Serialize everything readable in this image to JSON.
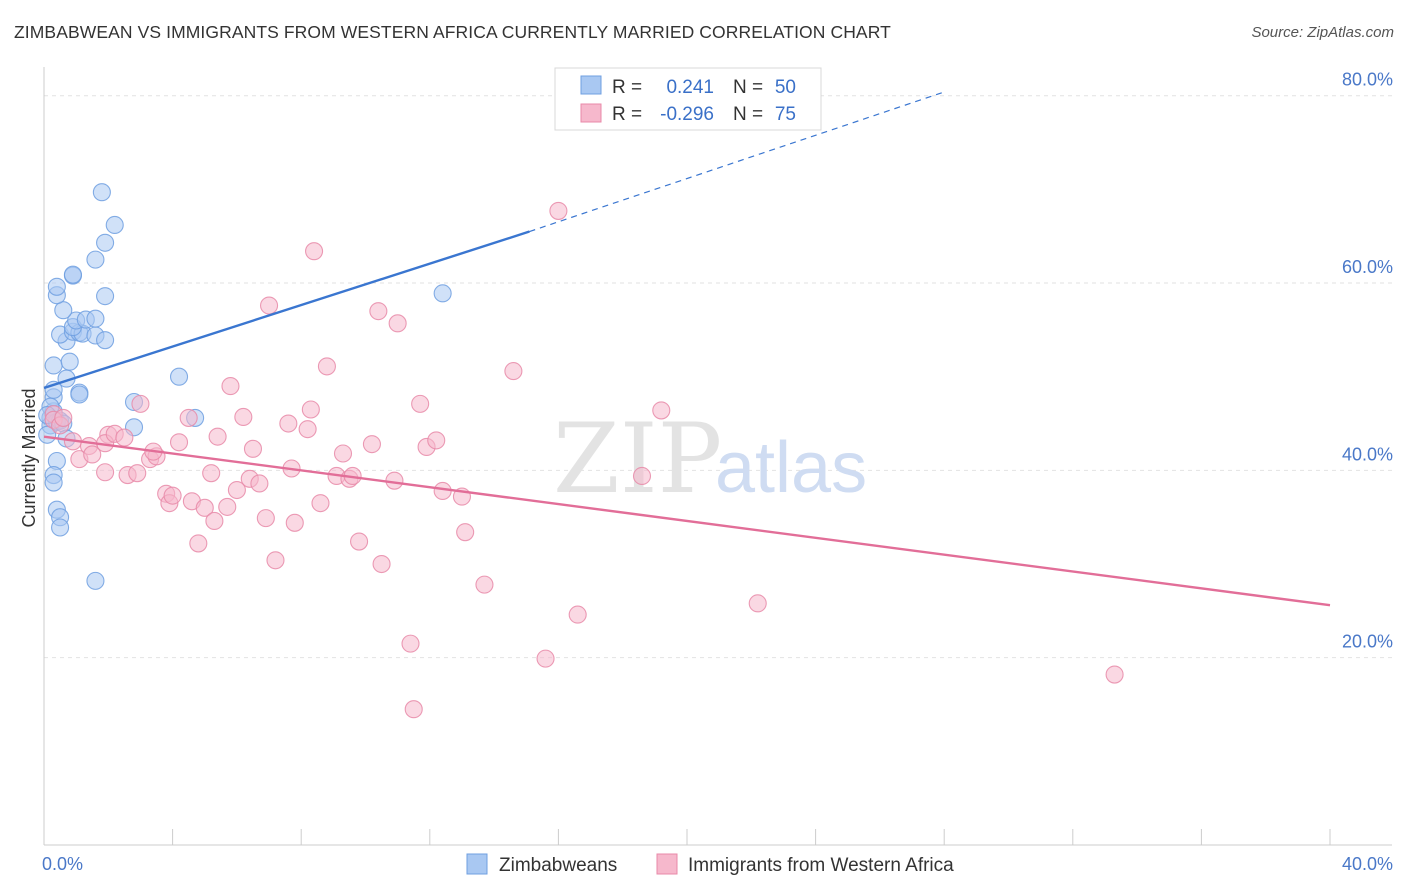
{
  "title": "ZIMBABWEAN VS IMMIGRANTS FROM WESTERN AFRICA CURRENTLY MARRIED CORRELATION CHART",
  "source": "Source: ZipAtlas.com",
  "watermark": {
    "zip": "ZIP",
    "atlas": "atlas"
  },
  "stats": [
    {
      "r_label": "R =",
      "r_value": "0.241",
      "n_label": "N =",
      "n_value": "50"
    },
    {
      "r_label": "R =",
      "r_value": "-0.296",
      "n_label": "N =",
      "n_value": "75"
    }
  ],
  "legend": [
    {
      "label": "Zimbabweans",
      "color": "#a9c8f2"
    },
    {
      "label": "Immigrants from Western Africa",
      "color": "#f6b8cc"
    }
  ],
  "chart_data": {
    "type": "scatter",
    "title": "ZIMBABWEAN VS IMMIGRANTS FROM WESTERN AFRICA CURRENTLY MARRIED CORRELATION CHART",
    "xlabel": "",
    "ylabel": "Currently Married",
    "xlim": [
      0,
      40
    ],
    "ylim": [
      0,
      82
    ],
    "x_tick_labels": [
      "0.0%",
      "40.0%"
    ],
    "y_ticks": [
      20,
      40,
      60,
      80
    ],
    "y_tick_labels": [
      "20.0%",
      "40.0%",
      "60.0%",
      "80.0%"
    ],
    "grid": true,
    "series": [
      {
        "name": "Zimbabweans",
        "color": "#6f9fe0",
        "fill": "#a9c8f2",
        "trend": {
          "x1": 0,
          "y1": 48.8,
          "x2": 15.1,
          "y2": 65.5,
          "dash_to_x": 28,
          "dash_to_y": 80.4
        },
        "points": [
          [
            0.2,
            45.6
          ],
          [
            0.3,
            46.3
          ],
          [
            0.2,
            44.8
          ],
          [
            0.4,
            45.2
          ],
          [
            0.1,
            43.8
          ],
          [
            0.3,
            47.8
          ],
          [
            0.2,
            46.8
          ],
          [
            0.5,
            45.3
          ],
          [
            0.1,
            45.9
          ],
          [
            0.6,
            45.0
          ],
          [
            0.3,
            48.6
          ],
          [
            0.3,
            51.2
          ],
          [
            0.7,
            49.8
          ],
          [
            0.8,
            51.6
          ],
          [
            0.7,
            53.8
          ],
          [
            0.5,
            54.5
          ],
          [
            0.9,
            54.8
          ],
          [
            1.1,
            54.7
          ],
          [
            1.2,
            54.6
          ],
          [
            0.9,
            55.3
          ],
          [
            1.0,
            56.0
          ],
          [
            0.6,
            57.1
          ],
          [
            0.4,
            58.7
          ],
          [
            0.4,
            59.6
          ],
          [
            0.9,
            60.8
          ],
          [
            0.9,
            60.9
          ],
          [
            1.3,
            56.1
          ],
          [
            1.6,
            54.4
          ],
          [
            1.6,
            56.2
          ],
          [
            1.9,
            53.9
          ],
          [
            1.9,
            58.6
          ],
          [
            1.6,
            62.5
          ],
          [
            1.9,
            64.3
          ],
          [
            2.2,
            66.2
          ],
          [
            1.8,
            69.7
          ],
          [
            1.1,
            48.3
          ],
          [
            1.1,
            48.1
          ],
          [
            0.7,
            43.4
          ],
          [
            0.4,
            41.0
          ],
          [
            0.3,
            39.5
          ],
          [
            0.3,
            38.7
          ],
          [
            0.4,
            35.8
          ],
          [
            0.5,
            35.0
          ],
          [
            0.5,
            33.9
          ],
          [
            1.6,
            28.2
          ],
          [
            2.8,
            47.3
          ],
          [
            4.2,
            50.0
          ],
          [
            4.7,
            45.6
          ],
          [
            2.8,
            44.6
          ],
          [
            12.4,
            58.9
          ]
        ]
      },
      {
        "name": "Immigrants from Western Africa",
        "color": "#e889a8",
        "fill": "#f6b8cc",
        "trend": {
          "x1": 0,
          "y1": 43.6,
          "x2": 40,
          "y2": 25.6
        },
        "points": [
          [
            0.3,
            46.0
          ],
          [
            0.3,
            45.4
          ],
          [
            0.5,
            44.8
          ],
          [
            0.6,
            45.6
          ],
          [
            0.9,
            43.1
          ],
          [
            1.1,
            41.2
          ],
          [
            1.4,
            42.6
          ],
          [
            1.5,
            41.7
          ],
          [
            2.0,
            43.8
          ],
          [
            1.9,
            42.9
          ],
          [
            2.2,
            43.9
          ],
          [
            2.5,
            43.5
          ],
          [
            1.9,
            39.8
          ],
          [
            2.6,
            39.5
          ],
          [
            2.9,
            39.7
          ],
          [
            3.0,
            47.1
          ],
          [
            3.3,
            41.2
          ],
          [
            3.5,
            41.5
          ],
          [
            3.4,
            42.0
          ],
          [
            3.8,
            37.5
          ],
          [
            3.9,
            36.5
          ],
          [
            4.0,
            37.3
          ],
          [
            4.2,
            43.0
          ],
          [
            4.5,
            45.6
          ],
          [
            4.6,
            36.7
          ],
          [
            4.8,
            32.2
          ],
          [
            5.0,
            36.0
          ],
          [
            5.2,
            39.7
          ],
          [
            5.3,
            34.6
          ],
          [
            5.4,
            43.6
          ],
          [
            5.7,
            36.1
          ],
          [
            5.8,
            49.0
          ],
          [
            6.0,
            37.9
          ],
          [
            6.2,
            45.7
          ],
          [
            6.4,
            39.1
          ],
          [
            6.5,
            42.3
          ],
          [
            6.7,
            38.6
          ],
          [
            6.9,
            34.9
          ],
          [
            7.0,
            57.6
          ],
          [
            7.2,
            30.4
          ],
          [
            7.6,
            45.0
          ],
          [
            7.7,
            40.2
          ],
          [
            7.8,
            34.4
          ],
          [
            8.2,
            44.4
          ],
          [
            8.3,
            46.5
          ],
          [
            8.4,
            63.4
          ],
          [
            8.6,
            36.5
          ],
          [
            8.8,
            51.1
          ],
          [
            9.1,
            39.4
          ],
          [
            9.3,
            41.8
          ],
          [
            9.5,
            39.1
          ],
          [
            9.6,
            39.4
          ],
          [
            9.8,
            32.4
          ],
          [
            10.2,
            42.8
          ],
          [
            10.4,
            57.0
          ],
          [
            10.5,
            30.0
          ],
          [
            10.9,
            38.9
          ],
          [
            11.0,
            55.7
          ],
          [
            11.4,
            21.5
          ],
          [
            11.5,
            14.5
          ],
          [
            11.7,
            47.1
          ],
          [
            11.9,
            42.5
          ],
          [
            12.2,
            43.2
          ],
          [
            12.4,
            37.8
          ],
          [
            13.0,
            37.2
          ],
          [
            13.1,
            33.4
          ],
          [
            13.7,
            27.8
          ],
          [
            14.6,
            50.6
          ],
          [
            15.6,
            19.9
          ],
          [
            16.0,
            67.7
          ],
          [
            16.6,
            24.6
          ],
          [
            18.6,
            39.4
          ],
          [
            19.2,
            46.4
          ],
          [
            22.2,
            25.8
          ],
          [
            33.3,
            18.2
          ]
        ]
      }
    ]
  }
}
